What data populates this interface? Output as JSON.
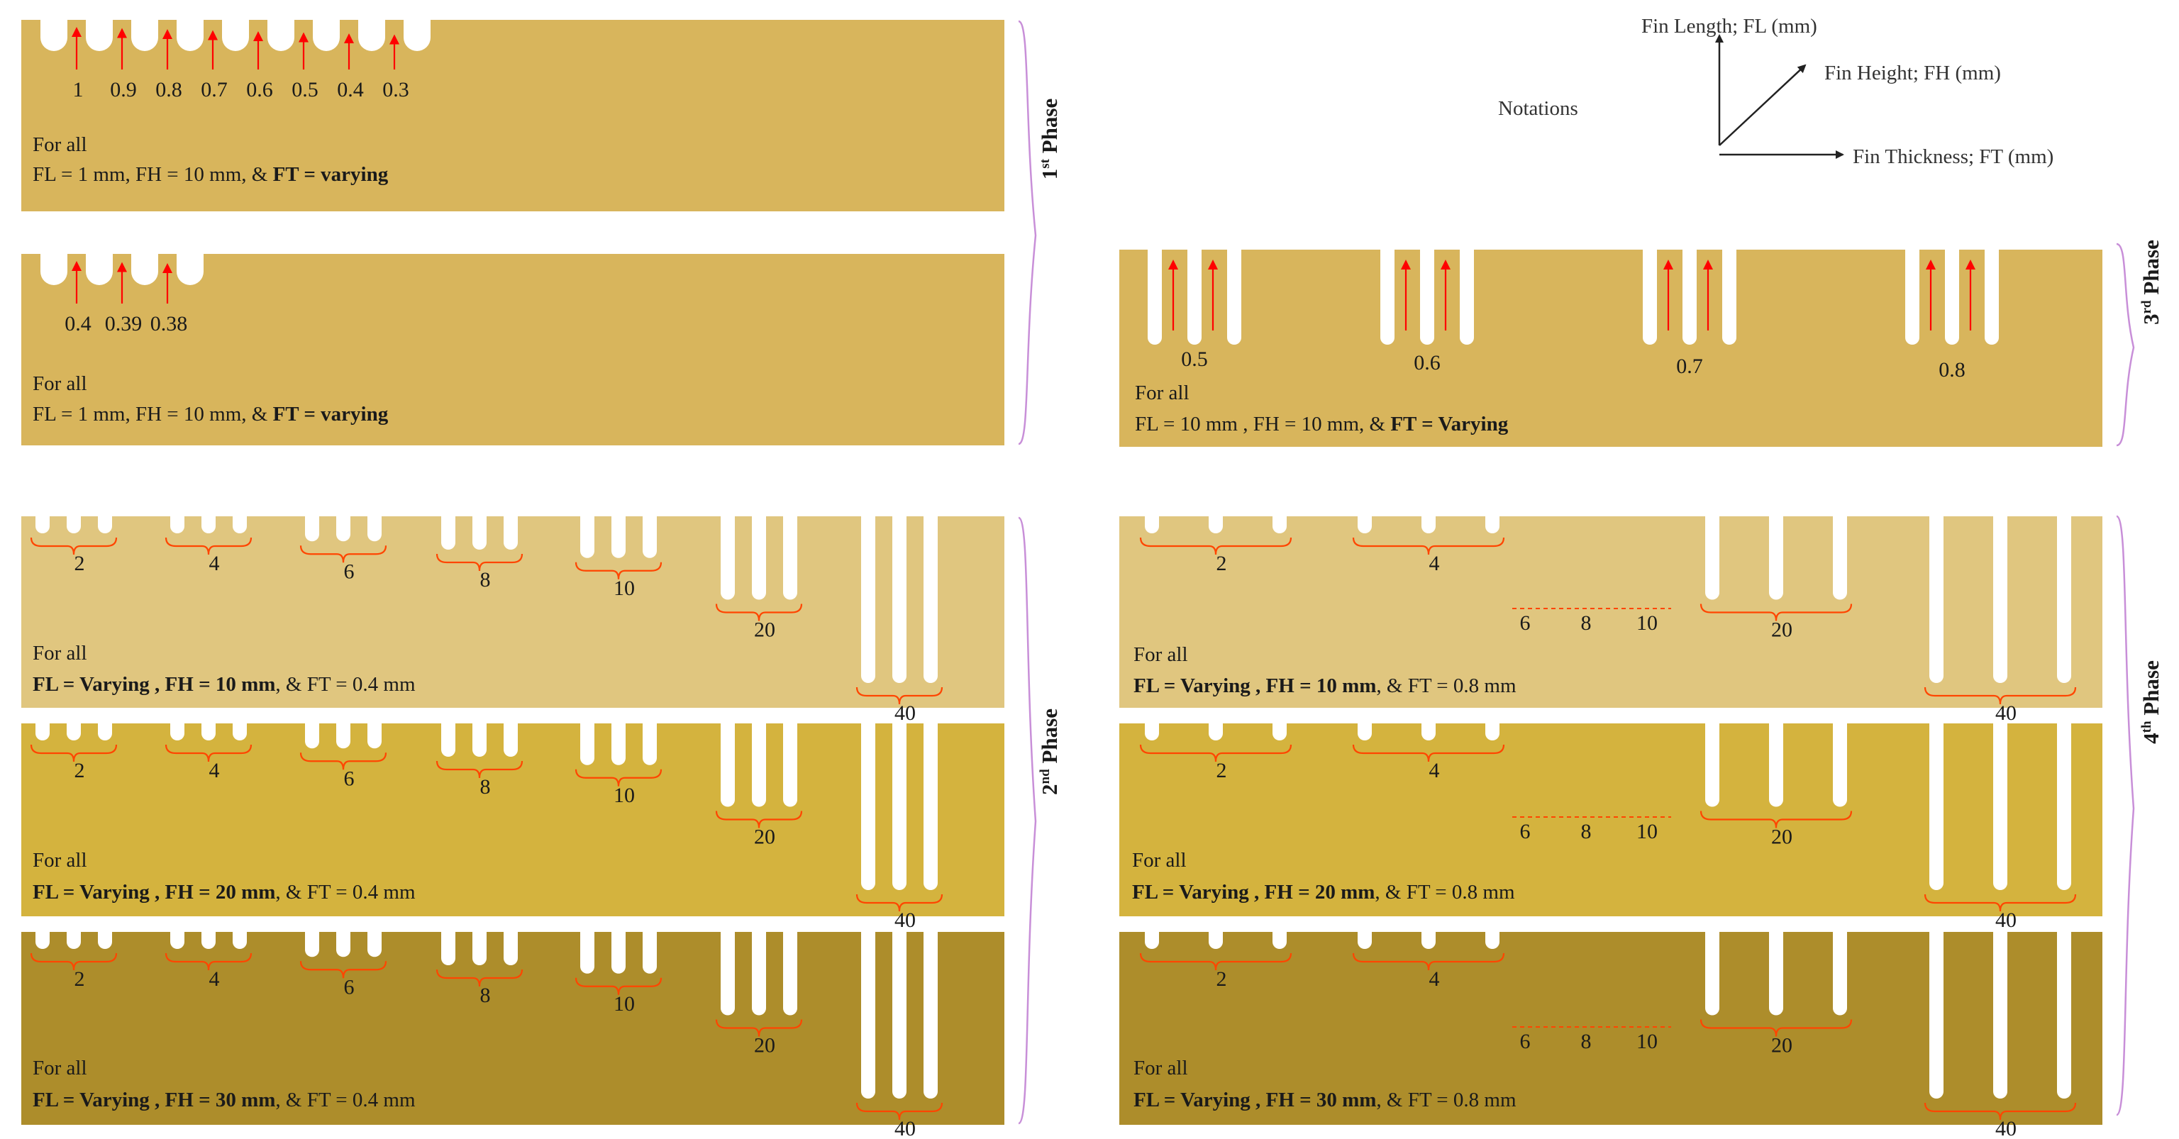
{
  "colors": {
    "background": "#ffffff",
    "phase1": "#d8b55c",
    "phase3": "#d8b55c",
    "phase2_light": "#e0c67f",
    "phase2_mid": "#d4b33e",
    "phase2_dark": "#ad8d2b",
    "arrow": "#ff0000",
    "brace": "#ff4500",
    "phase_bracket": "#c88fd8"
  },
  "notations": {
    "title": "Notations",
    "length": "Fin Length; FL (mm)",
    "height": "Fin Height; FH (mm)",
    "thickness": "Fin Thickness; FT (mm)"
  },
  "phases": {
    "p1": {
      "num": "1",
      "sup": "st",
      "word": "Phase"
    },
    "p2": {
      "num": "2",
      "sup": "nd",
      "word": "Phase"
    },
    "p3": {
      "num": "3",
      "sup": "rd",
      "word": "Phase"
    },
    "p4": {
      "num": "4",
      "sup": "th",
      "word": "Phase"
    }
  },
  "plates": {
    "p1a": {
      "for_all": "For all",
      "cap_a": "FL = 1 mm, FH = 10 mm, & ",
      "cap_b": "FT = varying",
      "cap_c": "",
      "labels": [
        "1",
        "0.9",
        "0.8",
        "0.7",
        "0.6",
        "0.5",
        "0.4",
        "0.3"
      ]
    },
    "p1b": {
      "for_all": "For all",
      "cap_a": "FL = 1 mm, FH = 10 mm, & ",
      "cap_b": "FT = varying",
      "cap_c": "",
      "labels": [
        "0.4",
        "0.39",
        "0.38"
      ]
    },
    "p3": {
      "for_all": "For all",
      "cap_a": "FL = 10 mm , FH = 10 mm, & ",
      "cap_b": "FT = Varying",
      "cap_c": "",
      "labels": [
        "0.5",
        "0.6",
        "0.7",
        "0.8"
      ]
    },
    "p2a": {
      "for_all": "For all",
      "cap_a": "FL = Varying , FH = 10 mm",
      "cap_b": "",
      "cap_c": ", & FT = 0.4 mm",
      "labels": [
        "2",
        "4",
        "6",
        "8",
        "10",
        "20",
        "40"
      ]
    },
    "p2b": {
      "for_all": "For all",
      "cap_a": "FL = Varying , FH = 20 mm",
      "cap_b": "",
      "cap_c": ", & FT = 0.4 mm",
      "labels": [
        "2",
        "4",
        "6",
        "8",
        "10",
        "20",
        "40"
      ]
    },
    "p2c": {
      "for_all": "For all",
      "cap_a": "FL = Varying , FH = 30 mm",
      "cap_b": "",
      "cap_c": ", & FT = 0.4 mm",
      "labels": [
        "2",
        "4",
        "6",
        "8",
        "10",
        "20",
        "40"
      ]
    },
    "p4a": {
      "for_all": "For all",
      "cap_a": "FL = Varying , FH = 10 mm",
      "cap_b": "",
      "cap_c": ", & FT = 0.8 mm",
      "labels": [
        "2",
        "4",
        "6",
        "8",
        "10",
        "20",
        "40"
      ]
    },
    "p4b": {
      "for_all": "For all",
      "cap_a": "FL = Varying , FH = 20 mm",
      "cap_b": "",
      "cap_c": ", & FT = 0.8 mm",
      "labels": [
        "2",
        "4",
        "6",
        "8",
        "10",
        "20",
        "40"
      ]
    },
    "p4c": {
      "for_all": "For all",
      "cap_a": "FL = Varying , FH = 30 mm",
      "cap_b": "",
      "cap_c": ", & FT = 0.8 mm",
      "labels": [
        "2",
        "4",
        "6",
        "8",
        "10",
        "20",
        "40"
      ]
    }
  }
}
